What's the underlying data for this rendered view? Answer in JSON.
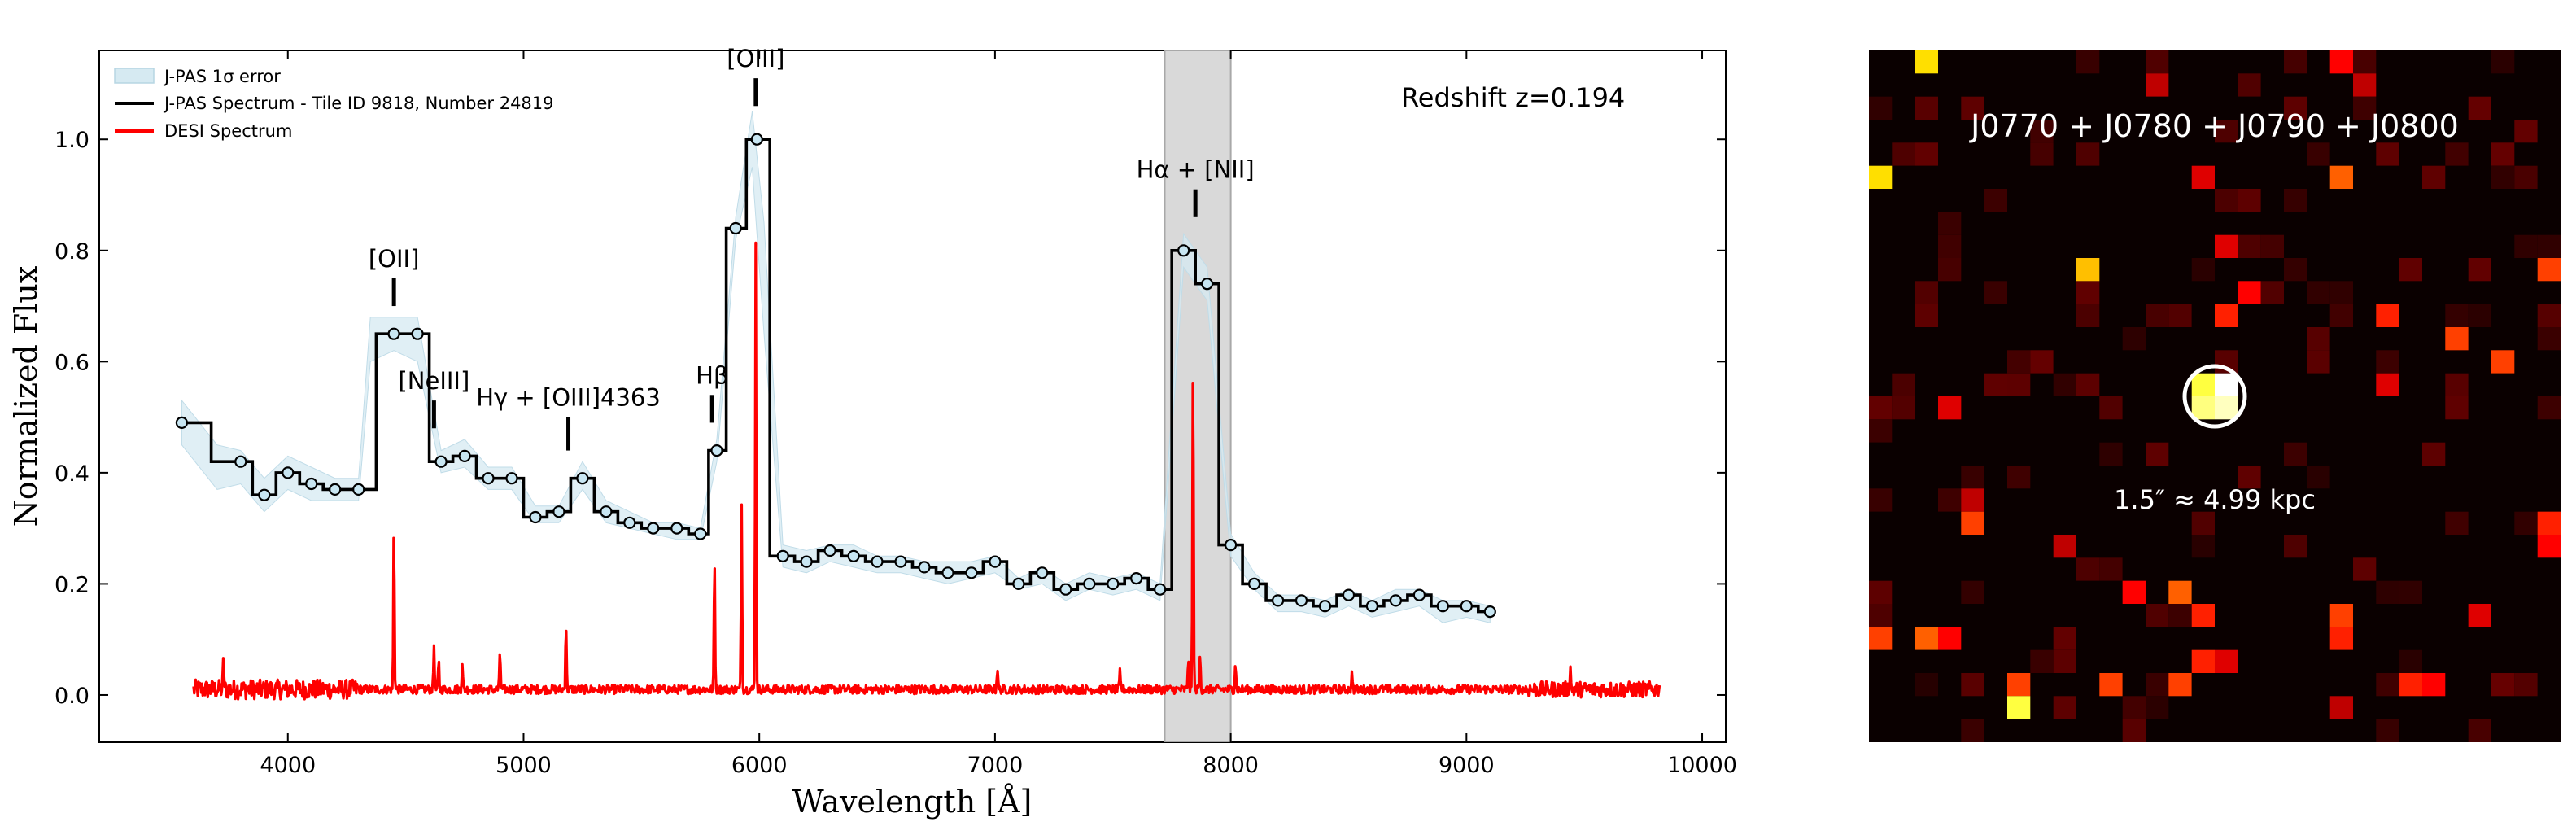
{
  "chart_data": [
    {
      "type": "line",
      "xlabel": "Wavelength [Å]",
      "ylabel": "Normalized Flux",
      "xlim": [
        3200,
        10100
      ],
      "ylim": [
        -0.085,
        1.16
      ],
      "xticks": [
        4000,
        5000,
        6000,
        7000,
        8000,
        9000,
        10000
      ],
      "yticks": [
        0.0,
        0.2,
        0.4,
        0.6,
        0.8,
        1.0
      ],
      "grid": false,
      "legend": "top-left",
      "annotation": "Redshift z=0.194",
      "shaded_band": {
        "x0": 7720,
        "x1": 8000,
        "color": "#d9d9d9"
      },
      "lines": [
        {
          "label": "[OII]",
          "x": 4450,
          "y0": 0.7,
          "y1": 0.75
        },
        {
          "label": "[NeIII]",
          "x": 4620,
          "y0": 0.48,
          "y1": 0.53
        },
        {
          "label": "Hγ + [OIII]4363",
          "x": 5190,
          "y0": 0.44,
          "y1": 0.5
        },
        {
          "label": "Hβ",
          "x": 5800,
          "y0": 0.49,
          "y1": 0.54
        },
        {
          "label": "[OIII]",
          "x": 5985,
          "y0": 1.06,
          "y1": 1.11
        },
        {
          "label": "Hα + [NII]",
          "x": 7850,
          "y0": 0.86,
          "y1": 0.91
        }
      ],
      "series": [
        {
          "name": "J-PAS 1σ error",
          "type": "band",
          "color": "#cfe6f0",
          "x": [
            3550,
            3700,
            3800,
            3900,
            4000,
            4100,
            4200,
            4300,
            4350,
            4450,
            4550,
            4650,
            4750,
            4850,
            4950,
            5050,
            5150,
            5250,
            5350,
            5450,
            5550,
            5650,
            5750,
            5820,
            5900,
            5970,
            6020,
            6100,
            6200,
            6300,
            6400,
            6500,
            6600,
            6700,
            6800,
            6900,
            7000,
            7100,
            7200,
            7300,
            7400,
            7500,
            7600,
            7700,
            7800,
            7900,
            8000,
            8100,
            8200,
            8300,
            8400,
            8500,
            8600,
            8700,
            8800,
            8900,
            9000,
            9100
          ],
          "lo": [
            0.45,
            0.37,
            0.38,
            0.33,
            0.37,
            0.35,
            0.35,
            0.35,
            0.6,
            0.62,
            0.6,
            0.4,
            0.41,
            0.37,
            0.37,
            0.31,
            0.31,
            0.37,
            0.31,
            0.3,
            0.29,
            0.28,
            0.28,
            0.42,
            0.82,
            0.95,
            0.65,
            0.23,
            0.22,
            0.24,
            0.23,
            0.22,
            0.22,
            0.21,
            0.2,
            0.21,
            0.22,
            0.19,
            0.2,
            0.17,
            0.19,
            0.18,
            0.19,
            0.17,
            0.77,
            0.71,
            0.25,
            0.19,
            0.15,
            0.15,
            0.14,
            0.16,
            0.14,
            0.15,
            0.16,
            0.13,
            0.14,
            0.13
          ],
          "hi": [
            0.53,
            0.45,
            0.44,
            0.39,
            0.43,
            0.41,
            0.39,
            0.39,
            0.68,
            0.68,
            0.68,
            0.44,
            0.46,
            0.41,
            0.41,
            0.34,
            0.34,
            0.42,
            0.35,
            0.33,
            0.31,
            0.31,
            0.3,
            0.46,
            0.86,
            1.05,
            0.85,
            0.27,
            0.26,
            0.27,
            0.27,
            0.25,
            0.25,
            0.24,
            0.24,
            0.24,
            0.25,
            0.21,
            0.23,
            0.2,
            0.22,
            0.21,
            0.22,
            0.2,
            0.83,
            0.77,
            0.29,
            0.22,
            0.18,
            0.18,
            0.17,
            0.19,
            0.17,
            0.19,
            0.19,
            0.17,
            0.17,
            0.16
          ]
        },
        {
          "name": "J-PAS Spectrum - Tile ID 9818, Number 24819",
          "type": "step",
          "color": "#000000",
          "x": [
            3550,
            3800,
            3900,
            4000,
            4100,
            4200,
            4300,
            4450,
            4550,
            4650,
            4750,
            4850,
            4950,
            5050,
            5150,
            5250,
            5350,
            5450,
            5550,
            5650,
            5750,
            5820,
            5900,
            5990,
            6100,
            6200,
            6300,
            6400,
            6500,
            6600,
            6700,
            6800,
            6900,
            7000,
            7100,
            7200,
            7300,
            7400,
            7500,
            7600,
            7700,
            7800,
            7900,
            8000,
            8100,
            8200,
            8300,
            8400,
            8500,
            8600,
            8700,
            8800,
            8900,
            9000,
            9100
          ],
          "y": [
            0.49,
            0.42,
            0.36,
            0.4,
            0.38,
            0.37,
            0.37,
            0.65,
            0.65,
            0.42,
            0.43,
            0.39,
            0.39,
            0.32,
            0.33,
            0.39,
            0.33,
            0.31,
            0.3,
            0.3,
            0.29,
            0.44,
            0.84,
            1.0,
            0.25,
            0.24,
            0.26,
            0.25,
            0.24,
            0.24,
            0.23,
            0.22,
            0.22,
            0.24,
            0.2,
            0.22,
            0.19,
            0.2,
            0.2,
            0.21,
            0.19,
            0.8,
            0.74,
            0.27,
            0.2,
            0.17,
            0.17,
            0.16,
            0.18,
            0.16,
            0.17,
            0.18,
            0.16,
            0.16,
            0.15
          ]
        },
        {
          "name": "DESI Spectrum",
          "type": "line",
          "color": "#ff0000",
          "x_range": [
            3600,
            9820
          ],
          "baseline": 0.01,
          "noise_sigma": 0.008,
          "emission_lines": [
            {
              "x": 3727,
              "y": 0.05
            },
            {
              "x": 4450,
              "y": 0.3
            },
            {
              "x": 4620,
              "y": 0.08
            },
            {
              "x": 4640,
              "y": 0.05
            },
            {
              "x": 4740,
              "y": 0.05
            },
            {
              "x": 4900,
              "y": 0.07
            },
            {
              "x": 5180,
              "y": 0.12
            },
            {
              "x": 5810,
              "y": 0.24
            },
            {
              "x": 5925,
              "y": 0.34
            },
            {
              "x": 5985,
              "y": 0.8
            },
            {
              "x": 7010,
              "y": 0.04
            },
            {
              "x": 7530,
              "y": 0.03
            },
            {
              "x": 7820,
              "y": 0.06
            },
            {
              "x": 7840,
              "y": 0.62
            },
            {
              "x": 7870,
              "y": 0.06
            },
            {
              "x": 8020,
              "y": 0.05
            },
            {
              "x": 8515,
              "y": 0.03
            },
            {
              "x": 9440,
              "y": 0.04
            }
          ]
        }
      ]
    },
    {
      "type": "heatmap",
      "title": "J0770 + J0780 + J0790 + J0800",
      "scalebar_label": "1.5″ ≈ 4.99 kpc",
      "colormap": "hot",
      "background": "#0a0000",
      "marker": "circle",
      "grid_size": [
        30,
        30
      ],
      "bright_pixels": [
        {
          "col": 2,
          "row": 0,
          "v": 0.75
        },
        {
          "col": 0,
          "row": 5,
          "v": 0.75
        },
        {
          "col": 9,
          "row": 9,
          "v": 0.7
        },
        {
          "col": 12,
          "row": 1,
          "v": 0.3
        },
        {
          "col": 14,
          "row": 5,
          "v": 0.35
        },
        {
          "col": 15,
          "row": 8,
          "v": 0.35
        },
        {
          "col": 20,
          "row": 0,
          "v": 0.4
        },
        {
          "col": 21,
          "row": 1,
          "v": 0.3
        },
        {
          "col": 20,
          "row": 5,
          "v": 0.55
        },
        {
          "col": 16,
          "row": 10,
          "v": 0.4
        },
        {
          "col": 15,
          "row": 11,
          "v": 0.45
        },
        {
          "col": 22,
          "row": 11,
          "v": 0.45
        },
        {
          "col": 25,
          "row": 12,
          "v": 0.5
        },
        {
          "col": 27,
          "row": 13,
          "v": 0.5
        },
        {
          "col": 29,
          "row": 9,
          "v": 0.5
        },
        {
          "col": 22,
          "row": 14,
          "v": 0.35
        },
        {
          "col": 3,
          "row": 15,
          "v": 0.35
        },
        {
          "col": 4,
          "row": 19,
          "v": 0.3
        },
        {
          "col": 4,
          "row": 20,
          "v": 0.5
        },
        {
          "col": 11,
          "row": 23,
          "v": 0.4
        },
        {
          "col": 13,
          "row": 23,
          "v": 0.55
        },
        {
          "col": 14,
          "row": 24,
          "v": 0.45
        },
        {
          "col": 0,
          "row": 25,
          "v": 0.5
        },
        {
          "col": 2,
          "row": 25,
          "v": 0.55
        },
        {
          "col": 3,
          "row": 25,
          "v": 0.4
        },
        {
          "col": 20,
          "row": 24,
          "v": 0.5
        },
        {
          "col": 20,
          "row": 25,
          "v": 0.45
        },
        {
          "col": 26,
          "row": 24,
          "v": 0.35
        },
        {
          "col": 6,
          "row": 27,
          "v": 0.5
        },
        {
          "col": 6,
          "row": 28,
          "v": 0.85
        },
        {
          "col": 10,
          "row": 27,
          "v": 0.5
        },
        {
          "col": 13,
          "row": 27,
          "v": 0.5
        },
        {
          "col": 14,
          "row": 26,
          "v": 0.45
        },
        {
          "col": 15,
          "row": 26,
          "v": 0.35
        },
        {
          "col": 23,
          "row": 27,
          "v": 0.45
        },
        {
          "col": 24,
          "row": 27,
          "v": 0.4
        },
        {
          "col": 20,
          "row": 28,
          "v": 0.3
        },
        {
          "col": 29,
          "row": 20,
          "v": 0.45
        },
        {
          "col": 29,
          "row": 21,
          "v": 0.4
        },
        {
          "col": 8,
          "row": 21,
          "v": 0.3
        }
      ],
      "source_pixels": [
        {
          "col": 14,
          "row": 14,
          "v": 0.85
        },
        {
          "col": 15,
          "row": 14,
          "v": 1.0
        },
        {
          "col": 14,
          "row": 15,
          "v": 0.9
        },
        {
          "col": 15,
          "row": 15,
          "v": 0.95
        }
      ]
    }
  ]
}
